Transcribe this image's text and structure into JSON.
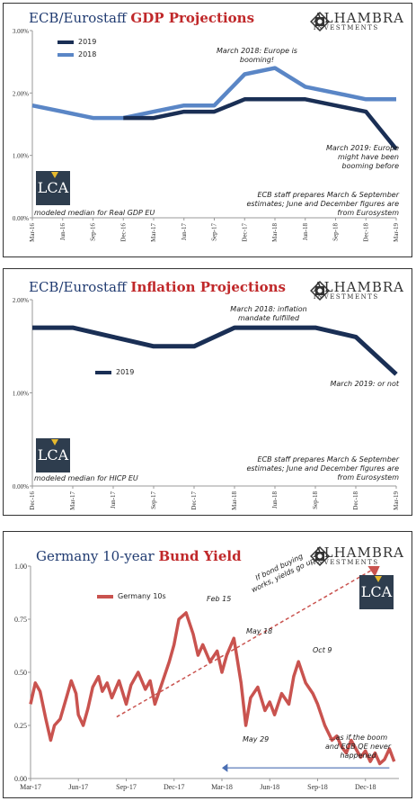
{
  "brand": {
    "name": "ALHAMBRA",
    "sub": "INVESTMENTS",
    "lca": "LCA"
  },
  "chart_data": [
    {
      "type": "line",
      "title_prefix": "ECB/Eurostaff",
      "title_highlight": "GDP Projections",
      "x_ticks": [
        "Mar-16",
        "Jun-16",
        "Sep-16",
        "Dec-16",
        "Mar-17",
        "Jun-17",
        "Sep-17",
        "Dec-17",
        "Mar-18",
        "Jun-18",
        "Sep-18",
        "Dec-18",
        "Mar-19"
      ],
      "y_ticks": [
        "0.00%",
        "1.00%",
        "2.00%",
        "3.00%"
      ],
      "ylim": [
        0,
        3
      ],
      "series": [
        {
          "name": "2018",
          "color": "#5a86c6",
          "values": [
            1.8,
            1.7,
            1.6,
            1.6,
            1.7,
            1.8,
            1.8,
            2.3,
            2.4,
            2.1,
            2.0,
            1.9,
            1.9
          ]
        },
        {
          "name": "2019",
          "color": "#1a2f55",
          "values": [
            null,
            null,
            null,
            1.6,
            1.6,
            1.7,
            1.7,
            1.9,
            1.9,
            1.9,
            1.8,
            1.7,
            1.1
          ]
        }
      ],
      "annotations": [
        {
          "lines": [
            "March 2018: Europe is",
            "booming!"
          ]
        },
        {
          "lines": [
            "March 2019: Europe",
            "might have been",
            "booming before"
          ]
        },
        {
          "lines": [
            "ECB staff prepares March & September",
            "estimates; June and December figures are",
            "from Eurosystem"
          ]
        },
        {
          "lines": [
            "modeled median for Real GDP EU"
          ]
        }
      ]
    },
    {
      "type": "line",
      "title_prefix": "ECB/Eurostaff",
      "title_highlight": "Inflation Projections",
      "x_ticks": [
        "Dec-16",
        "Mar-17",
        "Jun-17",
        "Sep-17",
        "Dec-17",
        "Mar-18",
        "Jun-18",
        "Sep-18",
        "Dec-18",
        "Mar-19"
      ],
      "y_ticks": [
        "0.00%",
        "1.00%",
        "2.00%"
      ],
      "ylim": [
        0,
        2
      ],
      "series": [
        {
          "name": "2019",
          "color": "#1a2f55",
          "values": [
            1.7,
            1.7,
            1.6,
            1.5,
            1.5,
            1.7,
            1.7,
            1.7,
            1.6,
            1.2
          ]
        }
      ],
      "annotations": [
        {
          "lines": [
            "March 2018: inflation",
            "mandate fulfilled"
          ]
        },
        {
          "lines": [
            "March 2019: or not"
          ]
        },
        {
          "lines": [
            "ECB staff prepares March & September",
            "estimates; June and December figures are",
            "from Eurosystem"
          ]
        },
        {
          "lines": [
            "modeled median for HICP EU"
          ]
        }
      ]
    },
    {
      "type": "line",
      "title_prefix": "Germany 10-year",
      "title_highlight": "Bund Yield",
      "x_ticks": [
        "Mar-17",
        "Jun-17",
        "Sep-17",
        "Dec-17",
        "Mar-18",
        "Jun-18",
        "Sep-18",
        "Dec-18"
      ],
      "y_ticks": [
        "0.00",
        "0.25",
        "0.50",
        "0.75",
        "1.00"
      ],
      "ylim": [
        0,
        1
      ],
      "series": [
        {
          "name": "Germany 10s",
          "color": "#c9534f",
          "x": [
            0,
            0.1,
            0.2,
            0.32,
            0.42,
            0.5,
            0.62,
            0.75,
            0.85,
            0.95,
            1.0,
            1.1,
            1.2,
            1.3,
            1.42,
            1.5,
            1.6,
            1.7,
            1.85,
            2.0,
            2.1,
            2.25,
            2.4,
            2.5,
            2.6,
            2.75,
            2.9,
            3.0,
            3.1,
            3.25,
            3.4,
            3.5,
            3.6,
            3.75,
            3.9,
            4.0,
            4.1,
            4.25,
            4.4,
            4.5,
            4.6,
            4.75,
            4.9,
            5.0,
            5.1,
            5.25,
            5.4,
            5.5,
            5.6,
            5.75,
            5.9,
            6.0,
            6.15,
            6.3,
            6.4,
            6.5,
            6.6,
            6.7,
            6.8,
            6.9,
            7.0,
            7.1,
            7.2,
            7.3,
            7.4,
            7.5,
            7.6
          ],
          "values": [
            0.35,
            0.45,
            0.41,
            0.28,
            0.18,
            0.25,
            0.28,
            0.38,
            0.46,
            0.4,
            0.3,
            0.25,
            0.33,
            0.43,
            0.48,
            0.41,
            0.45,
            0.38,
            0.46,
            0.35,
            0.44,
            0.5,
            0.42,
            0.46,
            0.35,
            0.45,
            0.55,
            0.63,
            0.75,
            0.78,
            0.68,
            0.58,
            0.63,
            0.55,
            0.6,
            0.5,
            0.58,
            0.66,
            0.45,
            0.25,
            0.38,
            0.43,
            0.32,
            0.36,
            0.3,
            0.4,
            0.35,
            0.48,
            0.55,
            0.45,
            0.4,
            0.35,
            0.25,
            0.18,
            0.2,
            0.15,
            0.12,
            0.18,
            0.14,
            0.1,
            0.13,
            0.08,
            0.12,
            0.07,
            0.09,
            0.14,
            0.08
          ]
        }
      ],
      "annotations": [
        {
          "lines": [
            "Feb 15"
          ]
        },
        {
          "lines": [
            "May 18"
          ]
        },
        {
          "lines": [
            "May 29"
          ]
        },
        {
          "lines": [
            "Oct 9"
          ]
        },
        {
          "lines": [
            "If bond buying",
            "works, yields go up"
          ]
        },
        {
          "lines": [
            "...as if the boom",
            "and ECB QE never",
            "happened"
          ]
        }
      ]
    }
  ]
}
